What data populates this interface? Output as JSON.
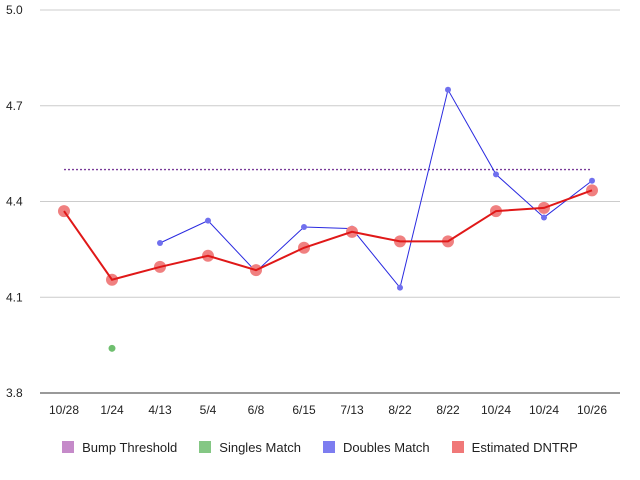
{
  "chart_data": {
    "type": "line",
    "categories": [
      "10/28",
      "1/24",
      "4/13",
      "5/4",
      "6/8",
      "6/15",
      "7/13",
      "8/22",
      "8/22",
      "10/24",
      "10/24",
      "10/26"
    ],
    "ylim": [
      3.8,
      5.0
    ],
    "yticks": [
      "3.8",
      "4.1",
      "4.4",
      "4.7",
      "5.0"
    ],
    "grid": true,
    "legend_position": "bottom",
    "series": [
      {
        "name": "Bump Threshold",
        "color": "#b366b3",
        "style": "dashed",
        "values": [
          4.5,
          4.5,
          4.5,
          4.5,
          4.5,
          4.5,
          4.5,
          4.5,
          4.5,
          4.5,
          4.5,
          4.5
        ]
      },
      {
        "name": "Singles Match",
        "color": "#6fbf6f",
        "style": "points",
        "values": [
          null,
          3.94,
          null,
          null,
          null,
          null,
          null,
          null,
          null,
          null,
          null,
          null
        ]
      },
      {
        "name": "Doubles Match",
        "color": "#2a2ae0",
        "style": "line",
        "values": [
          null,
          null,
          4.27,
          4.34,
          4.18,
          4.32,
          4.315,
          4.13,
          4.75,
          4.485,
          4.35,
          4.465
        ]
      },
      {
        "name": "Estimated DNTRP",
        "color": "#e01818",
        "style": "line-large-points",
        "values": [
          4.37,
          4.155,
          4.195,
          4.23,
          4.185,
          4.255,
          4.305,
          4.275,
          4.275,
          4.37,
          4.38,
          4.435
        ]
      }
    ]
  }
}
